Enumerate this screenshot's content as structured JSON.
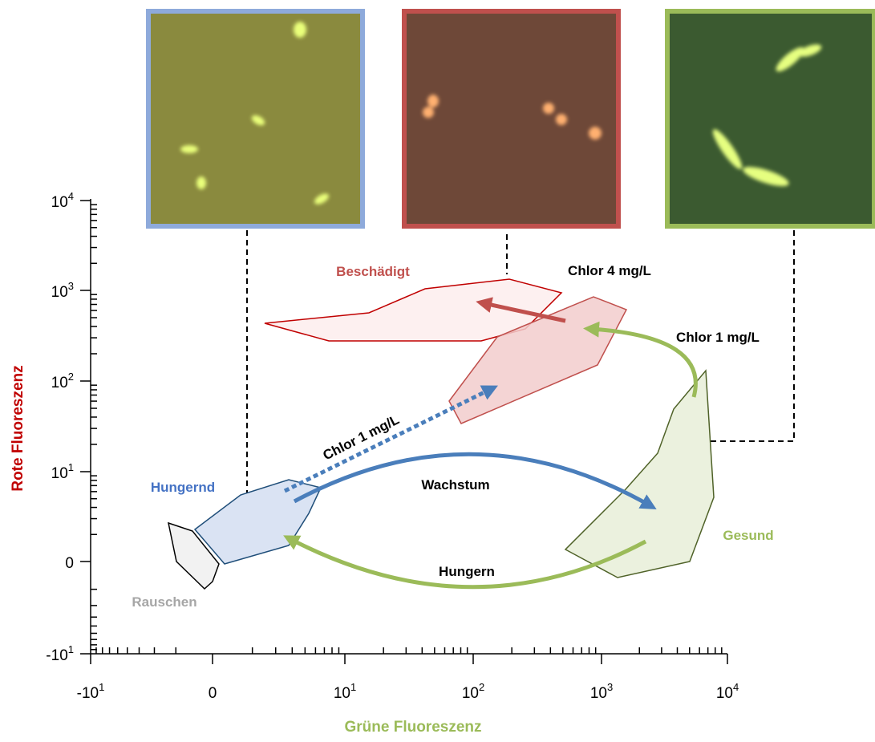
{
  "axes": {
    "x_label": "Grüne Fluoreszenz",
    "y_label": "Rote Fluoreszenz",
    "x_ticks": [
      {
        "base": "-10",
        "exp": "1"
      },
      {
        "base": "0"
      },
      {
        "base": "10",
        "exp": "1"
      },
      {
        "base": "10",
        "exp": "2"
      },
      {
        "base": "10",
        "exp": "3"
      },
      {
        "base": "10",
        "exp": "4"
      }
    ],
    "y_ticks": [
      {
        "base": "-10",
        "exp": "1"
      },
      {
        "base": "0"
      },
      {
        "base": "10",
        "exp": "1"
      },
      {
        "base": "10",
        "exp": "2"
      },
      {
        "base": "10",
        "exp": "3"
      },
      {
        "base": "10",
        "exp": "4"
      }
    ]
  },
  "regions": {
    "damaged": "Beschädigt",
    "starving": "Hungernd",
    "healthy": "Gesund",
    "noise": "Rauschen"
  },
  "arrows": {
    "chlorine_4": "Chlor 4 mg/L",
    "chlorine_1_right": "Chlor 1 mg/L",
    "chlorine_1_left": "Chlor 1 mg/L",
    "growth": "Wachstum",
    "starvation": "Hungern"
  }
}
